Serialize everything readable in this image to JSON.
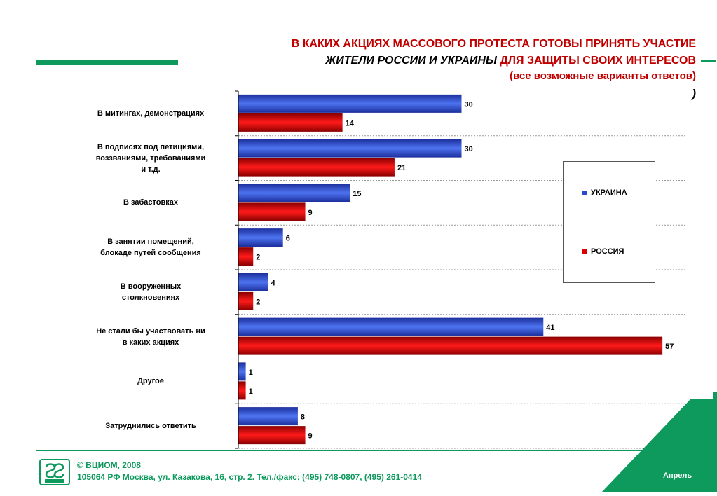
{
  "title": {
    "line1": "В КАКИХ АКЦИЯХ МАССОВОГО ПРОТЕСТА ГОТОВЫ ПРИНЯТЬ УЧАСТИЕ",
    "line2_italic": "ЖИТЕЛИ РОССИИ И УКРАИНЫ",
    "line2_rest": " ДЛЯ ЗАЩИТЫ СВОИХ ИНТЕРЕСОВ",
    "line3": "(все возможные варианты ответов)",
    "stray": ")"
  },
  "colors": {
    "brand_green": "#0d9a5c",
    "title_red": "#c00000",
    "ukraine_blue": "#2a4bd0",
    "russia_red": "#d80000"
  },
  "chart_data": {
    "type": "bar",
    "orientation": "horizontal",
    "categories": [
      "В митингах, демонстрациях",
      "В подписях под петициями, воззваниями, требованиями и т.д.",
      "В забастовках",
      "В занятии помещений, блокаде путей сообщения",
      "В вооруженных столкновениях",
      "Не стали бы участвовать ни в каких акциях",
      "Другое",
      "Затруднились ответить"
    ],
    "category_lines": [
      [
        "В митингах, демонстрациях"
      ],
      [
        "В подписях под петициями,",
        "воззваниями, требованиями",
        "и т.д."
      ],
      [
        "В забастовках"
      ],
      [
        "В занятии помещений,",
        "блокаде путей сообщения"
      ],
      [
        "В вооруженных",
        "столкновениях"
      ],
      [
        "Не стали бы участвовать ни",
        "в каких акциях"
      ],
      [
        "Другое"
      ],
      [
        "Затруднились ответить"
      ]
    ],
    "series": [
      {
        "name": "УКРАИНА",
        "color": "#2a4bd0",
        "values": [
          30,
          30,
          15,
          6,
          4,
          41,
          1,
          8
        ]
      },
      {
        "name": "РОССИЯ",
        "color": "#d80000",
        "values": [
          14,
          21,
          9,
          2,
          2,
          57,
          1,
          9
        ]
      }
    ],
    "xlim": [
      0,
      60
    ],
    "grid": true,
    "legend_position": "right"
  },
  "footer": {
    "copyright": "© ВЦИОМ, 2008",
    "address": "105064 РФ Москва, ул. Казакова, 16, стр. 2.  Тел./факс: (495) 748-0807, (495) 261-0414",
    "month": "Апрель"
  }
}
